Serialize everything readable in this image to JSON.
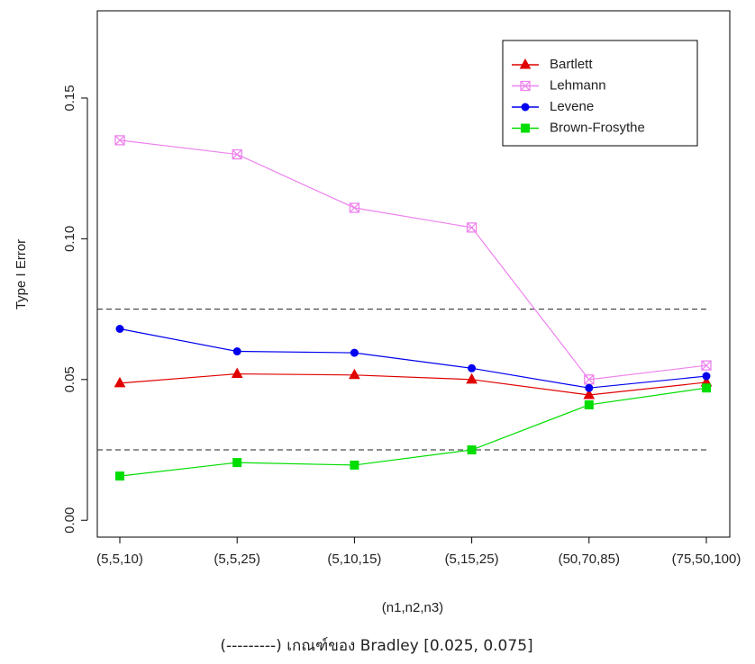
{
  "chart_data": {
    "type": "line",
    "x_label": "(n1,n2,n3)",
    "y_label": "Type I Error",
    "caption": "(---------) เกณฑ์ของ Bradley [0.025, 0.075]",
    "categories": [
      "(5,5,10)",
      "(5,5,25)",
      "(5,10,15)",
      "(5,15,25)",
      "(50,70,85)",
      "(75,50,100)"
    ],
    "series": [
      {
        "name": "Bartlett",
        "color": "#e00000",
        "marker": "triangle",
        "values": [
          0.0487,
          0.052,
          0.0516,
          0.05,
          0.0445,
          0.049
        ]
      },
      {
        "name": "Lehmann",
        "color": "#ee82ee",
        "marker": "crossed-square",
        "values": [
          0.135,
          0.13,
          0.111,
          0.104,
          0.05,
          0.055
        ]
      },
      {
        "name": "Levene",
        "color": "#0000ee",
        "marker": "circle",
        "values": [
          0.068,
          0.06,
          0.0595,
          0.054,
          0.047,
          0.0512
        ]
      },
      {
        "name": "Brown-Frosythe",
        "color": "#00dd00",
        "marker": "square",
        "values": [
          0.0157,
          0.0205,
          0.0196,
          0.025,
          0.041,
          0.047
        ]
      }
    ],
    "reference_lines": [
      0.025,
      0.075
    ],
    "ylim": [
      -0.006,
      0.181
    ],
    "yticks": [
      {
        "value": 0,
        "label": "0.00"
      },
      0.05,
      {
        "value": 0.1,
        "label": "0.10"
      },
      0.15
    ]
  }
}
